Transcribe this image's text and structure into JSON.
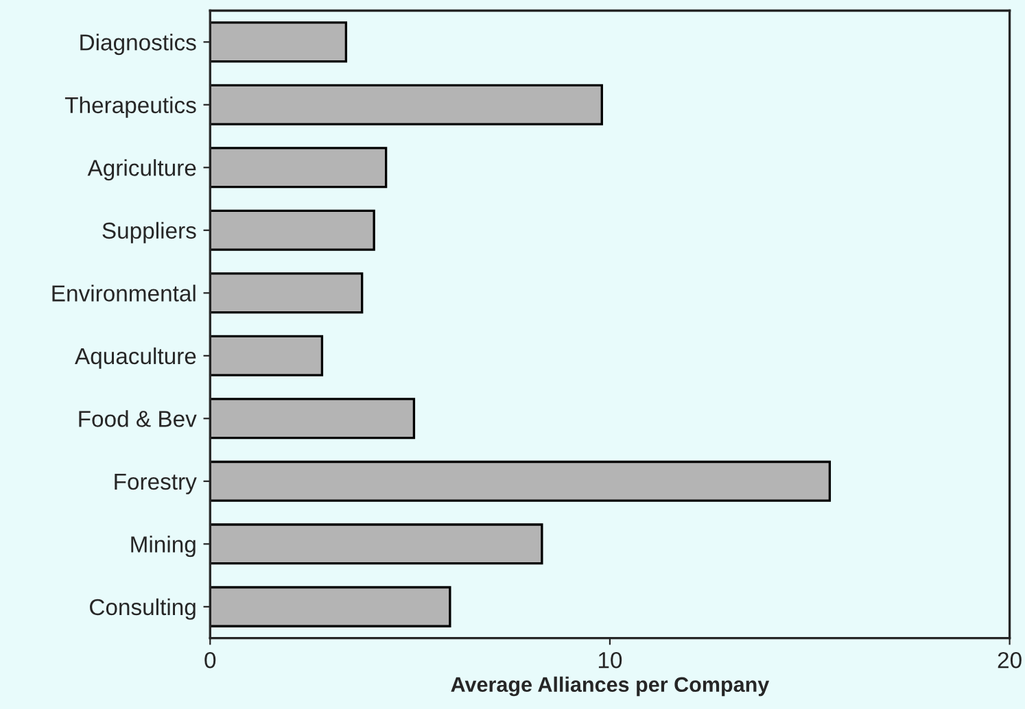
{
  "chart_data": {
    "type": "bar",
    "orientation": "horizontal",
    "xlabel": "Average Alliances per Company",
    "categories": [
      "Diagnostics",
      "Therapeutics",
      "Agriculture",
      "Suppliers",
      "Environmental",
      "Aquaculture",
      "Food & Bev",
      "Forestry",
      "Mining",
      "Consulting"
    ],
    "values": [
      3.4,
      9.8,
      4.4,
      4.1,
      3.8,
      2.8,
      5.1,
      15.5,
      8.3,
      6.0
    ],
    "color": "#b4b4b4",
    "xlim": [
      0,
      20
    ],
    "xticks": [
      0,
      10,
      20
    ],
    "grid": false,
    "legend": false
  }
}
